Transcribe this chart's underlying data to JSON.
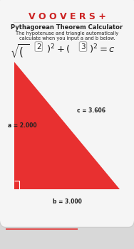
{
  "title": "V O O V E R S +",
  "subtitle": "Pythagorean Theorem Calculator",
  "description_line1": "The hypotenuse and triangle automatically",
  "description_line2": "calculate when you input a and b below.",
  "val_a": 2,
  "val_b": 3,
  "val_c": 3.606,
  "label_a": "a = 2.000",
  "label_b": "b = 3.000",
  "label_c": "c = 3.606",
  "title_color": "#cc2222",
  "red_fill": "#e83030",
  "bg_card": "#f5f5f5",
  "bg_outer": "#d8d8d8",
  "text_dark": "#222222",
  "red_line": "#e05050",
  "card_border": "#cccccc"
}
